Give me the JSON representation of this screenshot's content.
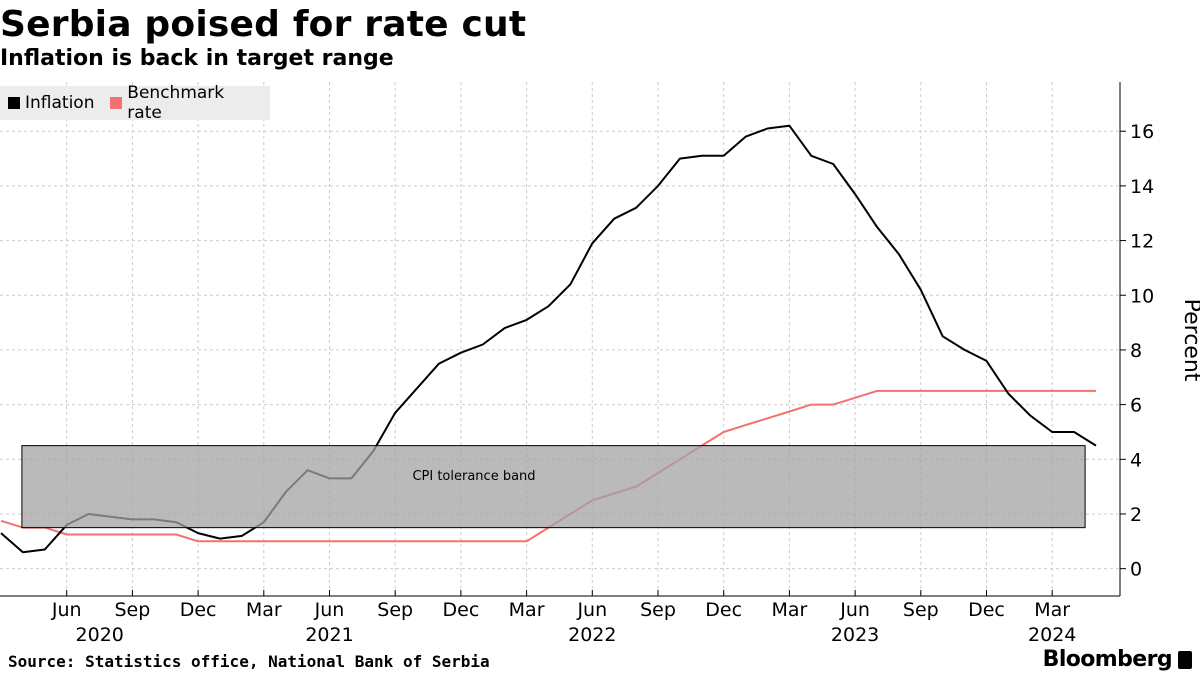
{
  "header": {
    "title": "Serbia poised for rate cut",
    "subtitle": "Inflation is back in target range"
  },
  "footer": {
    "source": "Source: Statistics office, National Bank of Serbia",
    "brand": "Bloomberg"
  },
  "colors": {
    "inflation": "#000000",
    "benchmark": "#f2726f",
    "band_fill": "#a3a3a3",
    "grid": "#cccccc"
  },
  "chart_data": {
    "type": "line",
    "title": "Serbia poised for rate cut",
    "subtitle": "Inflation is back in target range",
    "ylabel": "Percent",
    "xlabel": "",
    "ylim": [
      -1,
      17.8
    ],
    "y_ticks": [
      0,
      2,
      4,
      6,
      8,
      10,
      12,
      14,
      16
    ],
    "grid": true,
    "legend_position": "top-left",
    "x_start": "2020-03",
    "x_tick_labels": [
      {
        "month": "Jun",
        "year": "2020",
        "index": 3
      },
      {
        "month": "Sep",
        "year": "",
        "index": 6
      },
      {
        "month": "Dec",
        "year": "",
        "index": 9
      },
      {
        "month": "Mar",
        "year": "",
        "index": 12
      },
      {
        "month": "Jun",
        "year": "2021",
        "index": 15
      },
      {
        "month": "Sep",
        "year": "",
        "index": 18
      },
      {
        "month": "Dec",
        "year": "",
        "index": 21
      },
      {
        "month": "Mar",
        "year": "",
        "index": 24
      },
      {
        "month": "Jun",
        "year": "2022",
        "index": 27
      },
      {
        "month": "Sep",
        "year": "",
        "index": 30
      },
      {
        "month": "Dec",
        "year": "",
        "index": 33
      },
      {
        "month": "Mar",
        "year": "",
        "index": 36
      },
      {
        "month": "Jun",
        "year": "2023",
        "index": 39
      },
      {
        "month": "Sep",
        "year": "",
        "index": 42
      },
      {
        "month": "Dec",
        "year": "",
        "index": 45
      },
      {
        "month": "Mar",
        "year": "2024",
        "index": 48
      }
    ],
    "band": {
      "label": "CPI tolerance band",
      "low": 1.5,
      "high": 4.5,
      "start_index": 1,
      "end_index": 49
    },
    "series": [
      {
        "name": "Inflation",
        "color": "#000000",
        "start_index": 0,
        "values": [
          1.3,
          0.6,
          0.7,
          1.6,
          2.0,
          1.9,
          1.8,
          1.8,
          1.7,
          1.3,
          1.1,
          1.2,
          1.7,
          2.8,
          3.6,
          3.3,
          3.3,
          4.3,
          5.7,
          6.6,
          7.5,
          7.9,
          8.2,
          8.8,
          9.1,
          9.6,
          10.4,
          11.9,
          12.8,
          13.2,
          14.0,
          15.0,
          15.1,
          15.1,
          15.8,
          16.1,
          16.2,
          15.1,
          14.8,
          13.7,
          12.5,
          11.5,
          10.2,
          8.5,
          8.0,
          7.6,
          6.4,
          5.6,
          5.0,
          5.0,
          4.5
        ]
      },
      {
        "name": "Benchmark rate",
        "color": "#f2726f",
        "start_index": 0,
        "values": [
          1.75,
          1.5,
          1.5,
          1.25,
          1.25,
          1.25,
          1.25,
          1.25,
          1.25,
          1.0,
          1.0,
          1.0,
          1.0,
          1.0,
          1.0,
          1.0,
          1.0,
          1.0,
          1.0,
          1.0,
          1.0,
          1.0,
          1.0,
          1.0,
          1.0,
          1.5,
          2.0,
          2.5,
          2.75,
          3.0,
          3.5,
          4.0,
          4.5,
          5.0,
          5.25,
          5.5,
          5.75,
          6.0,
          6.0,
          6.25,
          6.5,
          6.5,
          6.5,
          6.5,
          6.5,
          6.5,
          6.5,
          6.5,
          6.5,
          6.5,
          6.5
        ]
      }
    ]
  }
}
